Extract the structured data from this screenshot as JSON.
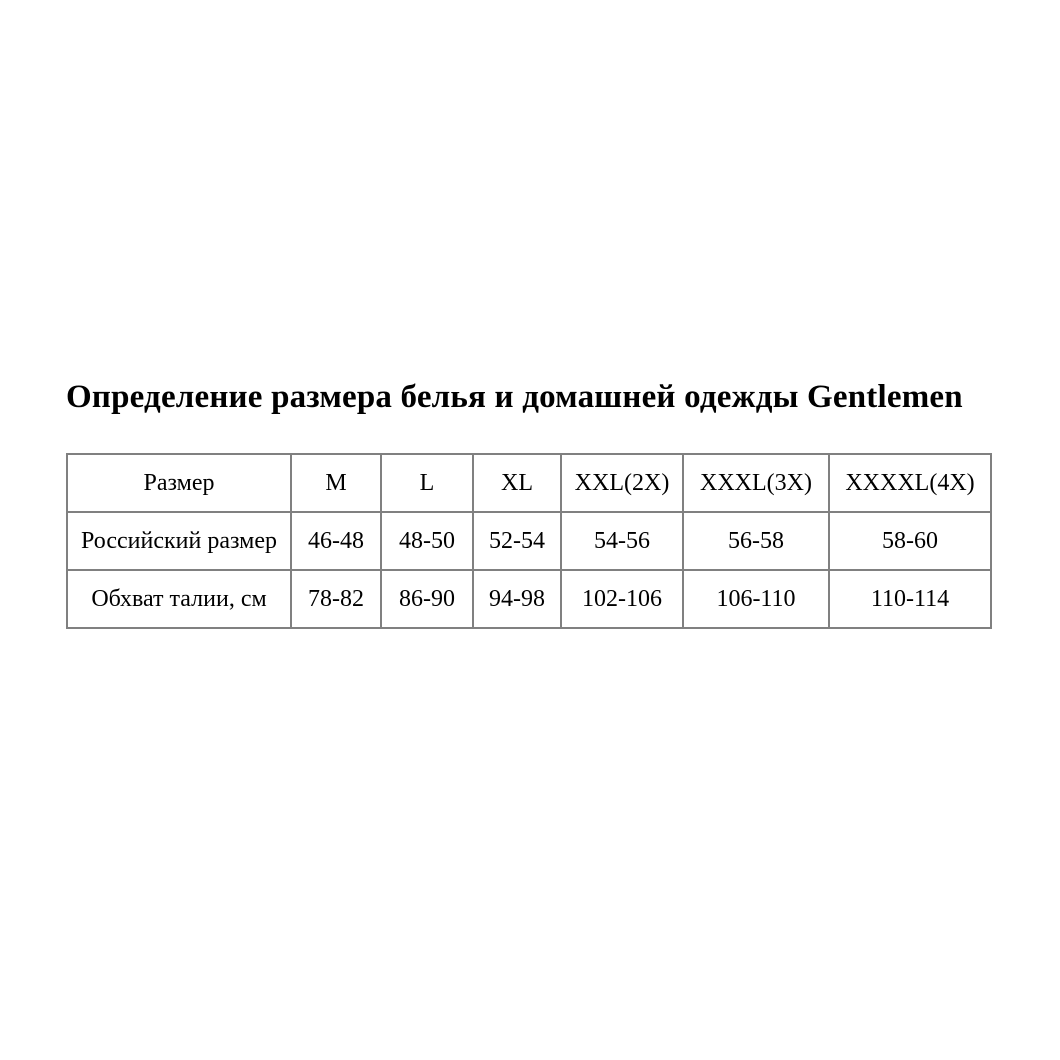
{
  "page": {
    "title": "Определение размера белья и домашней одежды Gentlemen"
  },
  "size_table": {
    "border_color": "#808080",
    "text_color": "#000000",
    "columns": [
      "Размер",
      "M",
      "L",
      "XL",
      "XXL(2X)",
      "XXXL(3X)",
      "XXXXL(4X)"
    ],
    "rows": [
      {
        "label": "Российский размер",
        "values": [
          "46-48",
          "48-50",
          "52-54",
          "54-56",
          "56-58",
          "58-60"
        ]
      },
      {
        "label": "Обхват талии, см",
        "values": [
          "78-82",
          "86-90",
          "94-98",
          "102-106",
          "106-110",
          "110-114"
        ]
      }
    ]
  }
}
